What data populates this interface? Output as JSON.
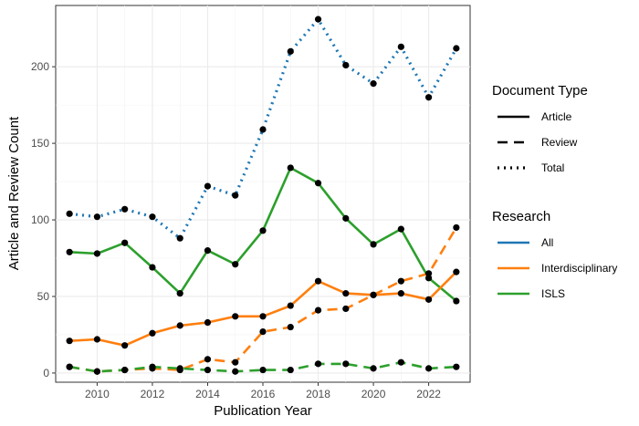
{
  "chart_data": {
    "type": "line",
    "xlabel": "Publication Year",
    "ylabel": "Article and Review Count",
    "xlim": [
      2008.5,
      2023.5
    ],
    "ylim": [
      -6,
      240
    ],
    "x_ticks": [
      2010,
      2012,
      2014,
      2016,
      2018,
      2020,
      2022
    ],
    "y_ticks": [
      0,
      50,
      100,
      150,
      200
    ],
    "grid": true,
    "legend_position": "right",
    "legends": [
      {
        "title": "Document Type",
        "entries": [
          {
            "label": "Article",
            "dash": "solid"
          },
          {
            "label": "Review",
            "dash": "dashed"
          },
          {
            "label": "Total",
            "dash": "dotted"
          }
        ]
      },
      {
        "title": "Research",
        "entries": [
          {
            "label": "All",
            "color": "#1f77b4"
          },
          {
            "label": "Interdisciplinary",
            "color": "#ff7f0e"
          },
          {
            "label": "ISLS",
            "color": "#2ca02c"
          }
        ]
      }
    ],
    "x": [
      2009,
      2010,
      2011,
      2012,
      2013,
      2014,
      2015,
      2016,
      2017,
      2018,
      2019,
      2020,
      2021,
      2022,
      2023
    ],
    "series": [
      {
        "research": "All",
        "type": "Total",
        "color": "#1f77b4",
        "dash": "dotted",
        "values": [
          104,
          102,
          107,
          102,
          88,
          122,
          116,
          159,
          210,
          231,
          201,
          189,
          213,
          180,
          212
        ]
      },
      {
        "research": "ISLS",
        "type": "Article",
        "color": "#2ca02c",
        "dash": "solid",
        "values": [
          79,
          78,
          85,
          69,
          52,
          80,
          71,
          93,
          134,
          124,
          101,
          84,
          94,
          62,
          47
        ]
      },
      {
        "research": "Interdisciplinary",
        "type": "Article",
        "color": "#ff7f0e",
        "dash": "solid",
        "values": [
          21,
          22,
          18,
          26,
          31,
          33,
          37,
          37,
          44,
          60,
          52,
          51,
          52,
          48,
          66
        ]
      },
      {
        "research": "Interdisciplinary",
        "type": "Review",
        "color": "#ff7f0e",
        "dash": "dashed",
        "values": [
          4,
          1,
          2,
          3,
          2,
          9,
          7,
          27,
          30,
          41,
          42,
          51,
          60,
          65,
          95
        ]
      },
      {
        "research": "ISLS",
        "type": "Review",
        "color": "#2ca02c",
        "dash": "dashed",
        "values": [
          4,
          1,
          2,
          4,
          3,
          2,
          1,
          2,
          2,
          6,
          6,
          3,
          7,
          3,
          4
        ]
      }
    ]
  }
}
